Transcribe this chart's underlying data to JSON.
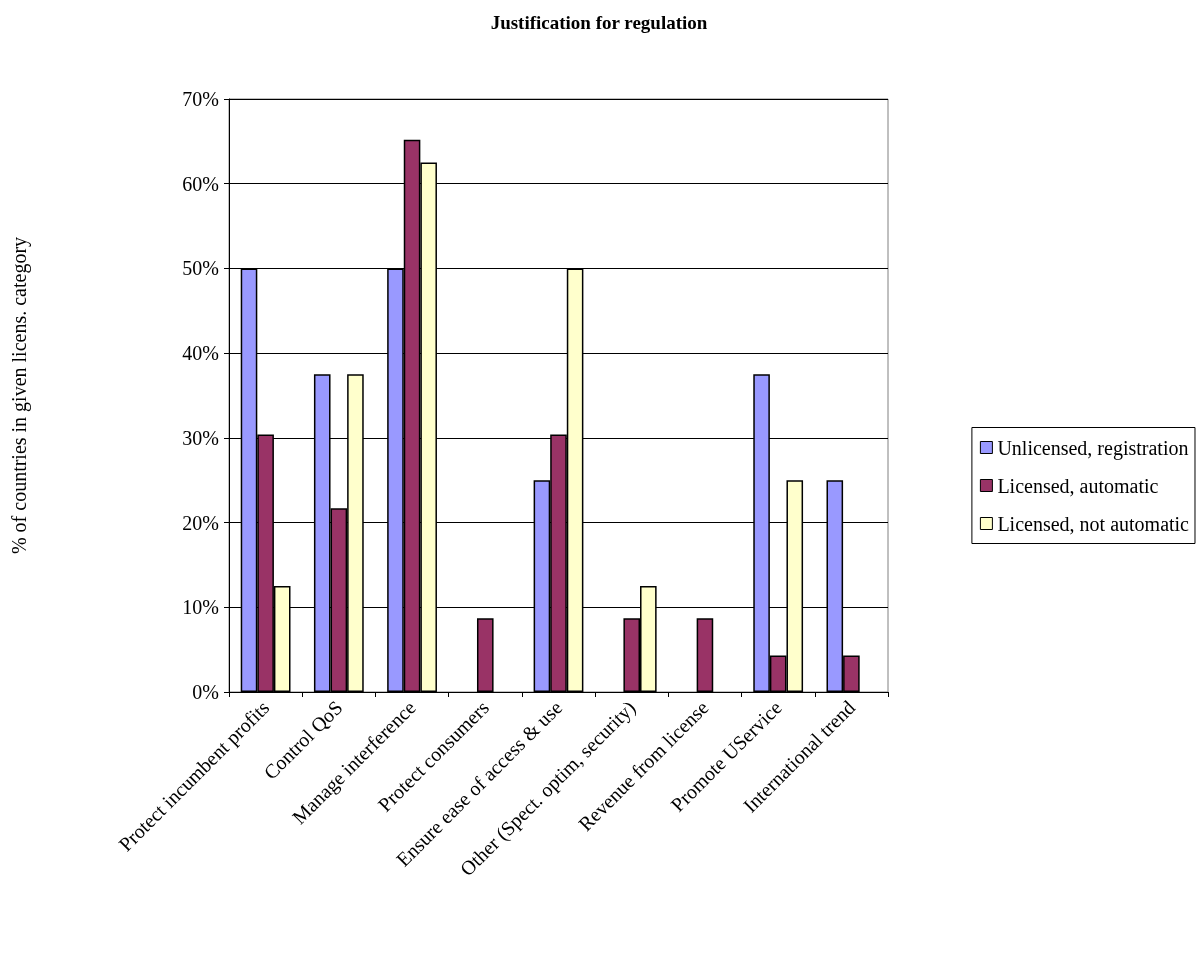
{
  "chart_data": {
    "type": "bar",
    "title": "Justification for regulation",
    "ylabel": "% of countries in given licens. category",
    "categories": [
      "Protect incumbent profits",
      "Control QoS",
      "Manage interference",
      "Protect consumers",
      "Ensure ease of access & use",
      "Other (Spect. optim, security)",
      "Revenue from license",
      "Promote UService",
      "International trend"
    ],
    "series": [
      {
        "name": "Unlicensed, registration",
        "color": "#9999ff",
        "values": [
          50,
          37.5,
          50,
          0,
          25,
          0,
          0,
          37.5,
          25
        ]
      },
      {
        "name": "Licensed, automatic",
        "color": "#993366",
        "values": [
          30.4,
          21.7,
          65.2,
          8.7,
          30.4,
          8.7,
          8.7,
          4.3,
          4.3
        ]
      },
      {
        "name": "Licensed, not automatic",
        "color": "#ffffcc",
        "values": [
          12.5,
          37.5,
          62.5,
          0,
          50,
          12.5,
          0,
          25,
          0
        ]
      }
    ],
    "ylim": [
      0,
      70
    ],
    "yticks": [
      {
        "value": 0,
        "label": "0%"
      },
      {
        "value": 10,
        "label": "10%"
      },
      {
        "value": 20,
        "label": "20%"
      },
      {
        "value": 30,
        "label": "30%"
      },
      {
        "value": 40,
        "label": "40%"
      },
      {
        "value": 50,
        "label": "50%"
      },
      {
        "value": 60,
        "label": "60%"
      },
      {
        "value": 70,
        "label": "70%"
      }
    ],
    "grid": "y",
    "legend": "right"
  }
}
